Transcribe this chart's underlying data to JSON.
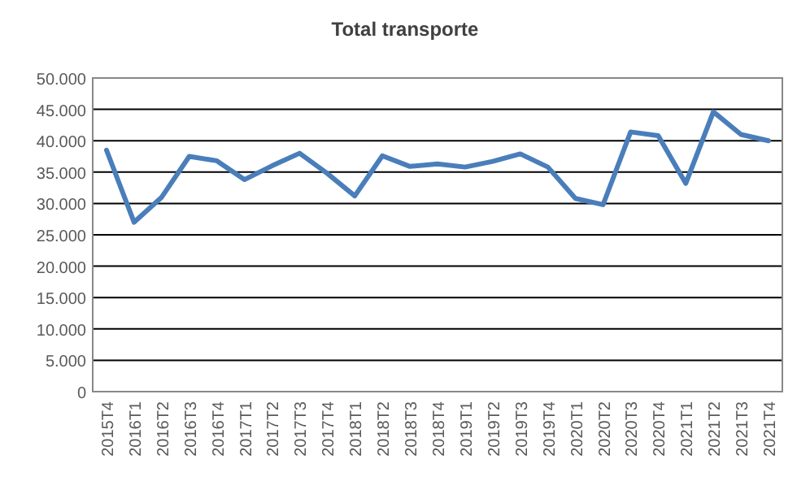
{
  "chart_data": {
    "type": "line",
    "title": "Total transporte",
    "categories": [
      "2015T4",
      "2016T1",
      "2016T2",
      "2016T3",
      "2016T4",
      "2017T1",
      "2017T2",
      "2017T3",
      "2017T4",
      "2018T1",
      "2018T2",
      "2018T3",
      "2018T4",
      "2019T1",
      "2019T2",
      "2019T3",
      "2019T4",
      "2020T1",
      "2020T2",
      "2020T3",
      "2020T4",
      "2021T1",
      "2021T2",
      "2021T3",
      "2021T4"
    ],
    "series": [
      {
        "color": "#4a7ebb",
        "values": [
          38500,
          27000,
          31000,
          37500,
          36800,
          33800,
          36000,
          38000,
          34800,
          31200,
          37600,
          35900,
          36300,
          35800,
          36700,
          37900,
          35800,
          30800,
          29800,
          41400,
          40800,
          33200,
          44600,
          41000,
          40000
        ]
      }
    ],
    "ylim": [
      0,
      50000
    ],
    "yticks": [
      {
        "value": 0,
        "label": "0"
      },
      {
        "value": 5000,
        "label": "5.000"
      },
      {
        "value": 10000,
        "label": "10.000"
      },
      {
        "value": 15000,
        "label": "15.000"
      },
      {
        "value": 20000,
        "label": "20.000"
      },
      {
        "value": 25000,
        "label": "25.000"
      },
      {
        "value": 30000,
        "label": "30.000"
      },
      {
        "value": 35000,
        "label": "35.000"
      },
      {
        "value": 40000,
        "label": "40.000"
      },
      {
        "value": 45000,
        "label": "45.000"
      },
      {
        "value": 50000,
        "label": "50.000"
      }
    ],
    "grid": "y",
    "marker": "none",
    "line_style": "solid"
  }
}
